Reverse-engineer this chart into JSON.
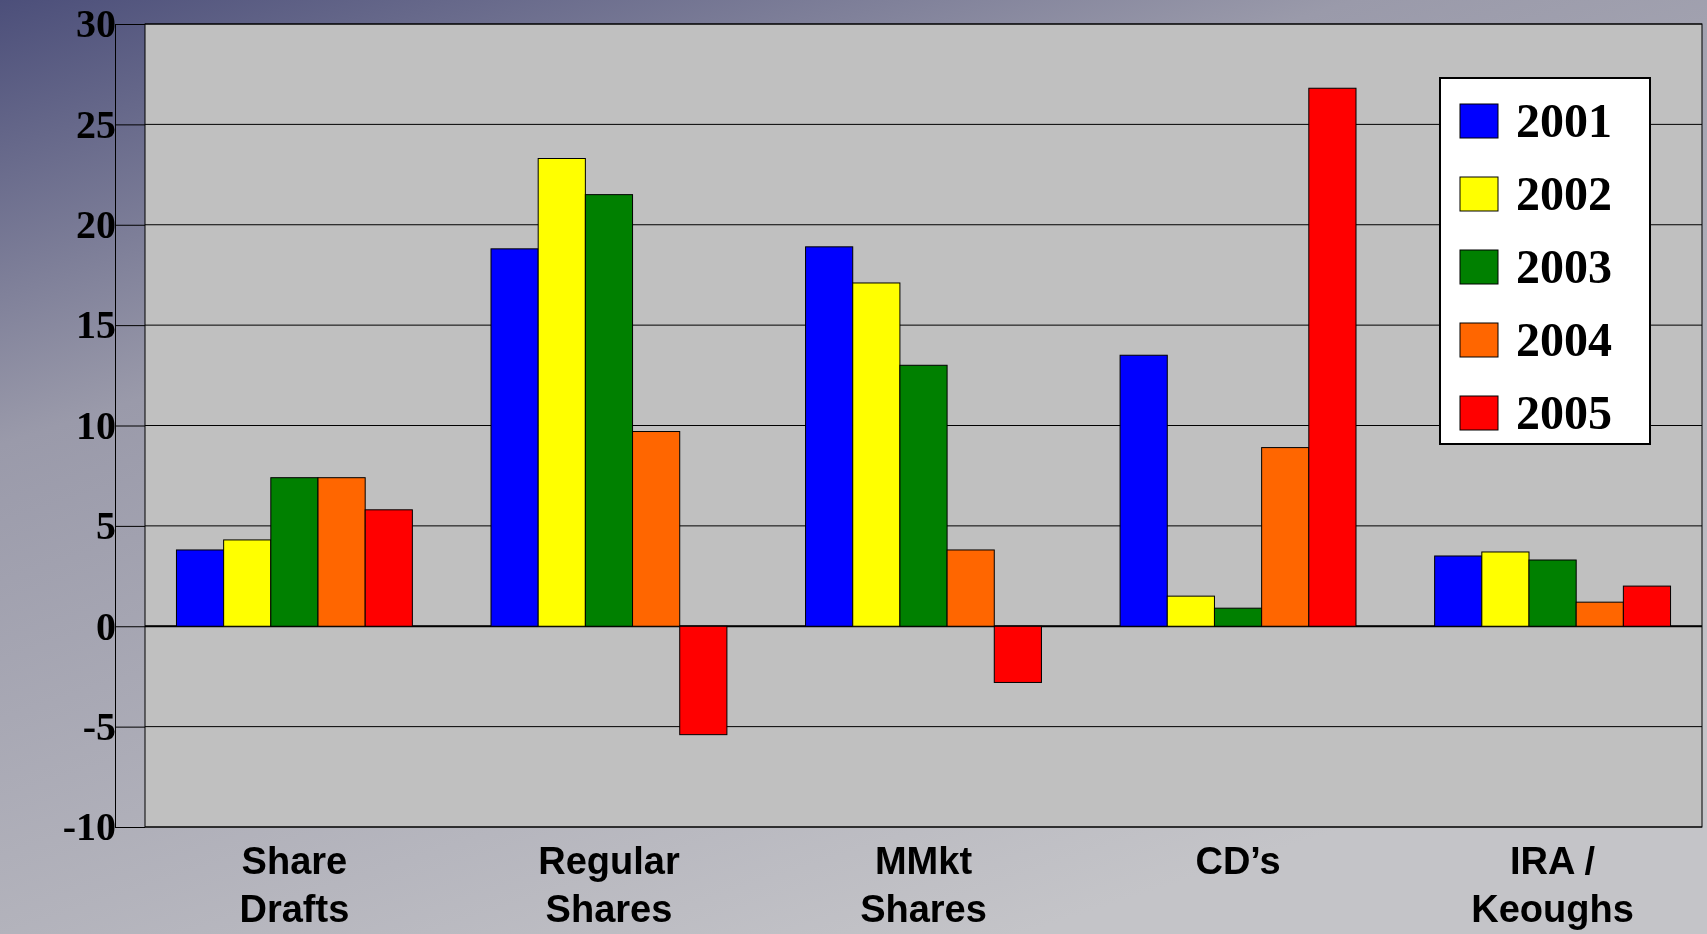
{
  "chart_data": {
    "type": "bar",
    "categories": [
      "Share Drafts",
      "Regular Shares",
      "MMkt Shares",
      "CD’s",
      "IRA / Keoughs"
    ],
    "series": [
      {
        "name": "2001",
        "color": "#0000ff",
        "values": [
          3.8,
          18.8,
          18.9,
          13.5,
          3.5
        ]
      },
      {
        "name": "2002",
        "color": "#ffff00",
        "values": [
          4.3,
          23.3,
          17.1,
          1.5,
          3.7
        ]
      },
      {
        "name": "2003",
        "color": "#008000",
        "values": [
          7.4,
          21.5,
          13.0,
          0.9,
          3.3
        ]
      },
      {
        "name": "2004",
        "color": "#ff6600",
        "values": [
          7.4,
          9.7,
          3.8,
          8.9,
          1.2
        ]
      },
      {
        "name": "2005",
        "color": "#ff0000",
        "values": [
          5.8,
          -5.4,
          -2.8,
          26.8,
          2.0
        ]
      }
    ],
    "ylim": [
      -10,
      30
    ],
    "yticks": [
      -10,
      -5,
      0,
      5,
      10,
      15,
      20,
      25,
      30
    ],
    "grid": "y",
    "legend": "top right"
  }
}
